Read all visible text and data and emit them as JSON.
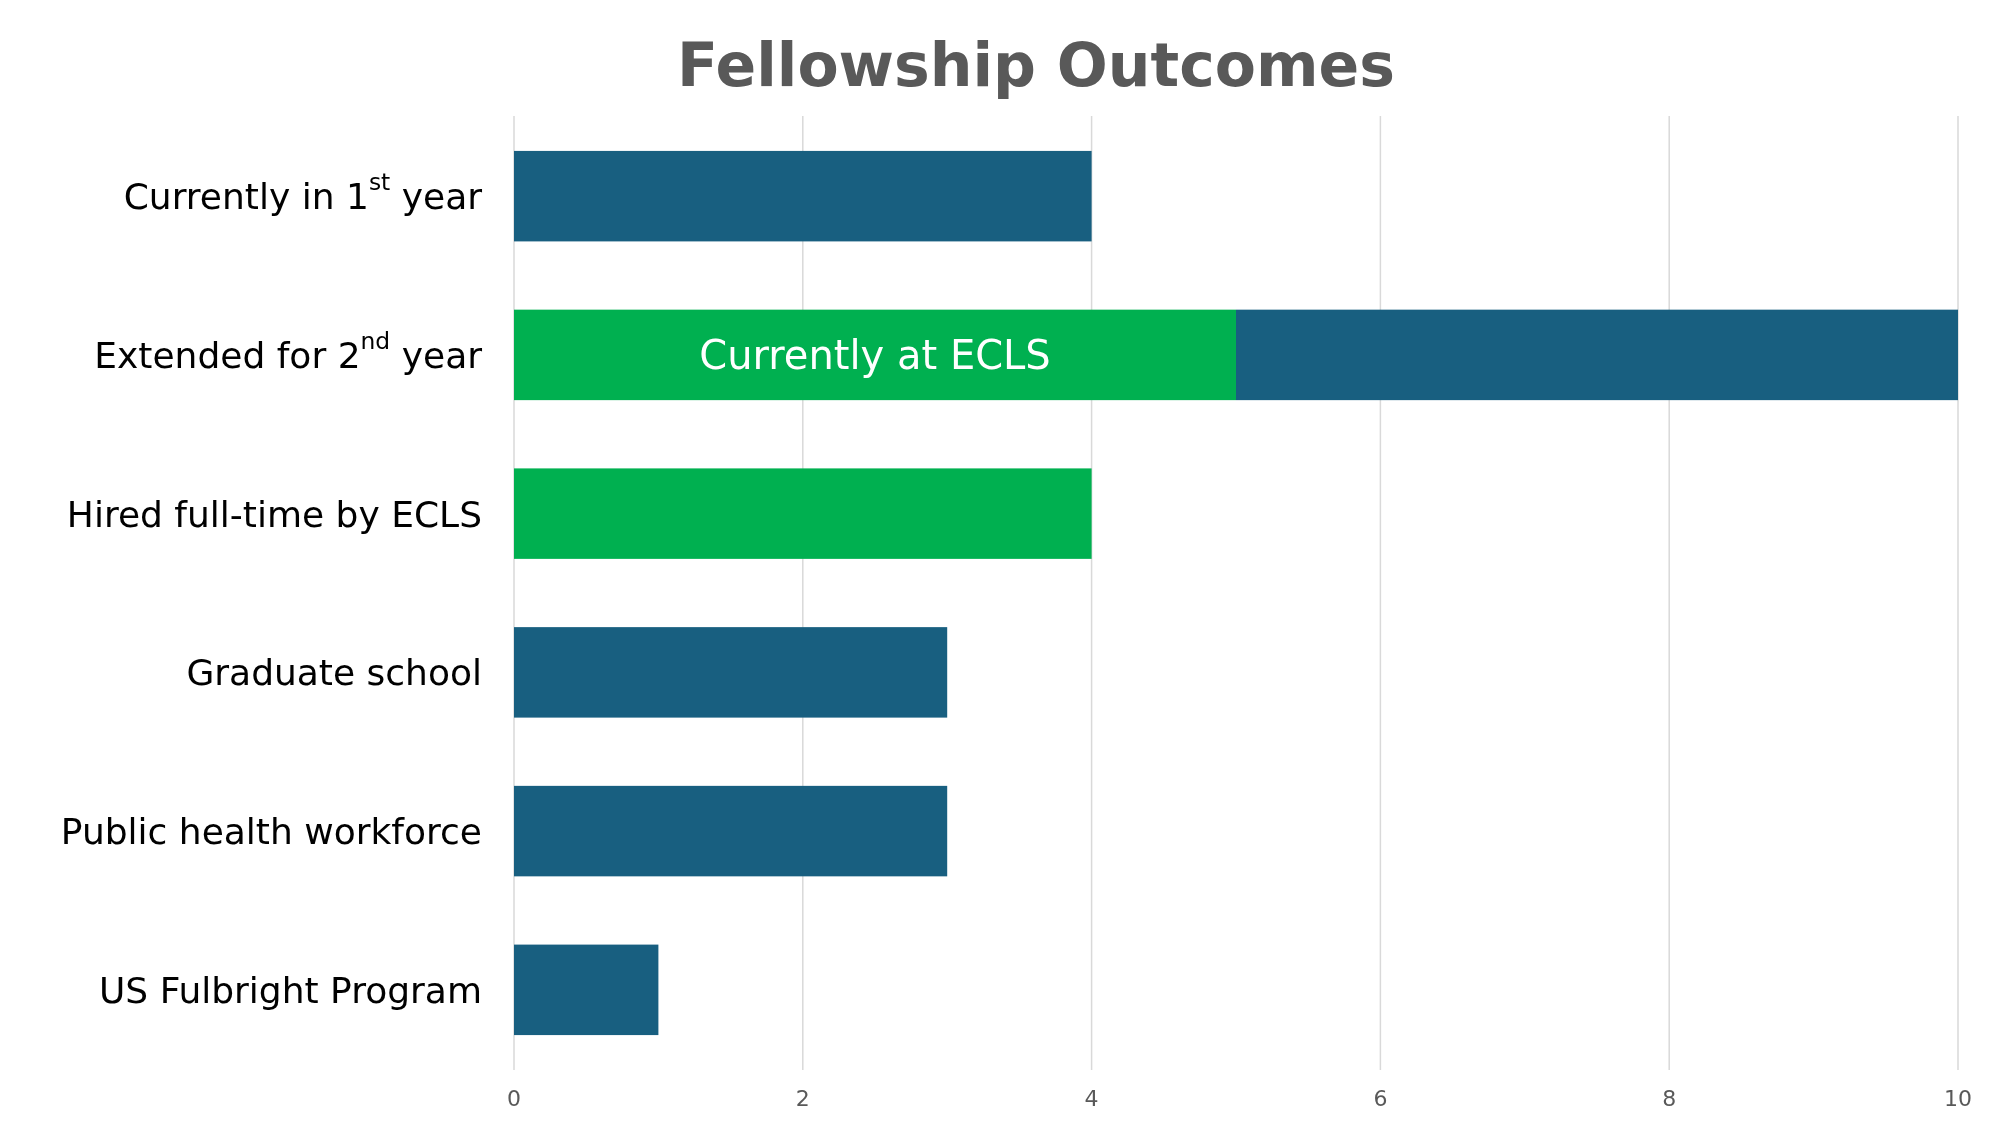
{
  "chart_data": {
    "type": "bar",
    "orientation": "horizontal",
    "stacked": true,
    "title": "Fellowship Outcomes",
    "categories": [
      "Currently in 1$^{st}$ year",
      "Extended for 2$^{nd}$ year",
      "Hired full-time by ECLS",
      "Graduate school",
      "Public health workforce",
      "US Fulbright Program"
    ],
    "series": [
      {
        "name": "Currently at ECLS",
        "color": "#00b050",
        "values": [
          null,
          5,
          4,
          null,
          null,
          null
        ]
      },
      {
        "color": "#185f80",
        "values": [
          4,
          5,
          null,
          3,
          3,
          1
        ]
      }
    ],
    "xlim": [
      0,
      10
    ],
    "xticks": [
      0,
      2,
      4,
      6,
      8,
      10
    ],
    "grid": "x"
  }
}
